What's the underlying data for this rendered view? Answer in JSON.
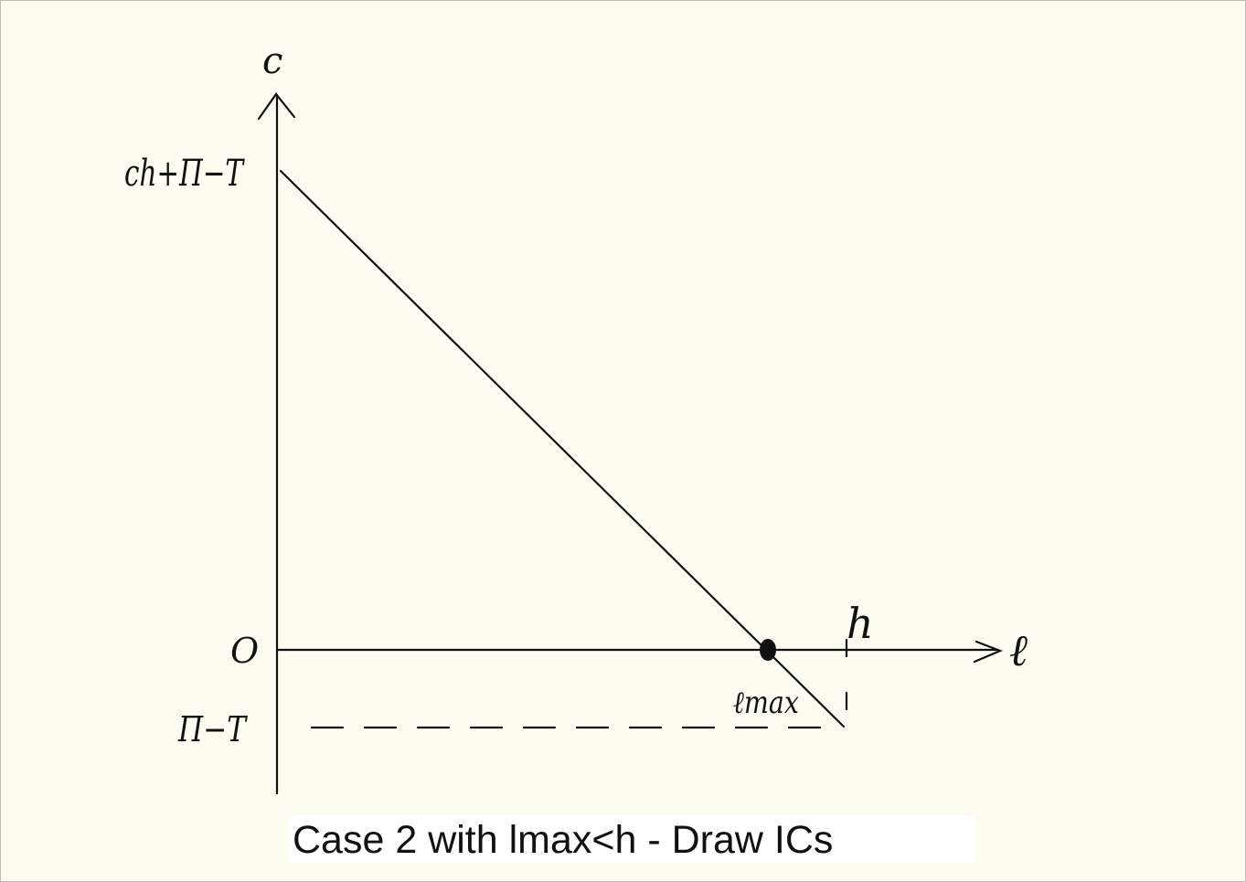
{
  "diagram": {
    "y_axis_label": "c",
    "x_axis_label": "ℓ",
    "y_intercept_label": "ch+Π−T",
    "origin_label": "O",
    "lower_level_label": "Π−T",
    "h_label": "h",
    "lmax_label": "ℓmax",
    "ink_color": "#111111",
    "background_color": "#fdfcf0"
  },
  "caption": {
    "text": "Case 2 with lmax<h - Draw ICs",
    "background_color": "#ffffff"
  }
}
